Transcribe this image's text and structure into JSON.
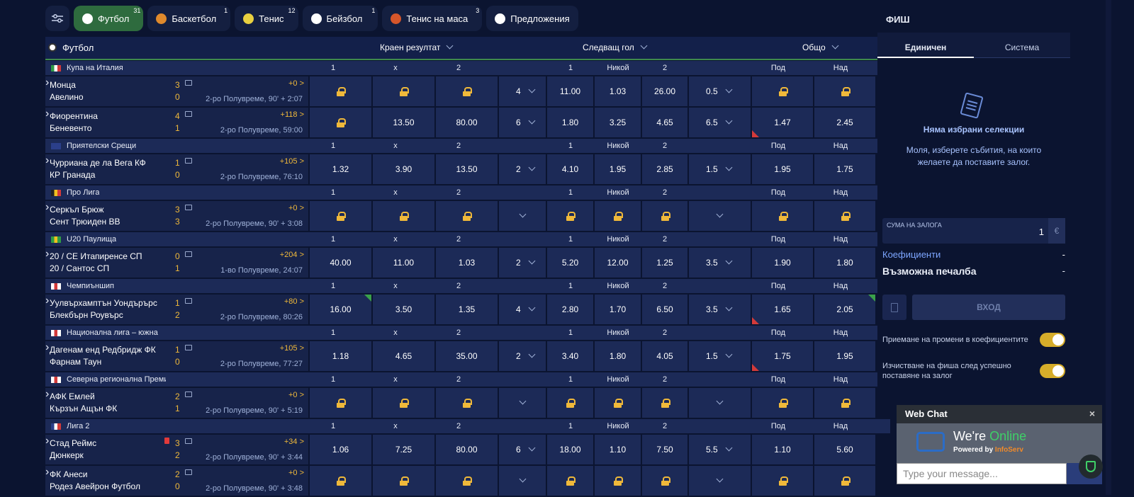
{
  "topbar": {
    "tabs": [
      {
        "label": "Футбол",
        "count": "31",
        "active": true,
        "color": "#ffffff"
      },
      {
        "label": "Баскетбол",
        "count": "1",
        "active": false,
        "color": "#e08a2c"
      },
      {
        "label": "Тенис",
        "count": "12",
        "active": false,
        "color": "#e9d040"
      },
      {
        "label": "Бейзбол",
        "count": "1",
        "active": false,
        "color": "#ffffff"
      },
      {
        "label": "Тенис на маса",
        "count": "3",
        "active": false,
        "color": "#d6562a"
      },
      {
        "label": "Предложения",
        "count": "",
        "active": false,
        "color": "#ffffff"
      }
    ]
  },
  "sport_header": {
    "label": "Футбол",
    "markets": [
      "Краен резултат",
      "Следващ гол",
      "Общо"
    ]
  },
  "headers": {
    "h1": [
      "1",
      "x",
      "2"
    ],
    "h2": [
      "1",
      "Никой",
      "2"
    ],
    "h3": [
      "Под",
      "Над"
    ]
  },
  "leagues": [
    {
      "name": "Купа на Италия",
      "flag": [
        "#2e9b45",
        "#ffffff",
        "#d33a3a"
      ],
      "matches": [
        {
          "home": "Монца",
          "away": "Авелино",
          "sh": "3",
          "sa": "0",
          "more": "+0",
          "status": "2-ро Полувреме, 90' + 2:07",
          "o1": [
            "L",
            "L",
            "L"
          ],
          "sel1": "4",
          "o2": [
            "11.00",
            "1.03",
            "26.00"
          ],
          "sel2": "0.5",
          "o3": [
            "L",
            "L"
          ],
          "mk": {},
          "red": false
        },
        {
          "home": "Фиорентина",
          "away": "Беневенто",
          "sh": "4",
          "sa": "1",
          "more": "+118",
          "status": "2-ро Полувреме, 59:00",
          "o1": [
            "L",
            "13.50",
            "80.00"
          ],
          "sel1": "6",
          "o2": [
            "1.80",
            "3.25",
            "4.65"
          ],
          "sel2": "6.5",
          "o3": [
            "1.47",
            "2.45"
          ],
          "mk": {
            "r": [
              8
            ]
          },
          "red": false
        }
      ]
    },
    {
      "name": "Приятелски Срещи",
      "flag": [
        "#2b3f8a",
        "#2b3f8a",
        "#2b3f8a"
      ],
      "matches": [
        {
          "home": "Чурриана де ла Вега КФ",
          "away": "КР Гранада",
          "sh": "1",
          "sa": "0",
          "more": "+105",
          "status": "2-ро Полувреме, 76:10",
          "o1": [
            "1.32",
            "3.90",
            "13.50"
          ],
          "sel1": "2",
          "o2": [
            "4.10",
            "1.95",
            "2.85"
          ],
          "sel2": "1.5",
          "o3": [
            "1.95",
            "1.75"
          ],
          "mk": {},
          "red": false
        }
      ]
    },
    {
      "name": "Про Лига",
      "flag": [
        "#222222",
        "#f0c020",
        "#d33a3a"
      ],
      "matches": [
        {
          "home": "Серкъл Брюж",
          "away": "Сент Трюиден ВВ",
          "sh": "3",
          "sa": "3",
          "more": "+0",
          "status": "2-ро Полувреме, 90' + 3:08",
          "o1": [
            "L",
            "L",
            "L"
          ],
          "sel1": "",
          "o2": [
            "L",
            "L",
            "L"
          ],
          "sel2": "",
          "o3": [
            "L",
            "L"
          ],
          "mk": {},
          "red": false
        }
      ]
    },
    {
      "name": "U20 Паулища",
      "flag": [
        "#2e9b45",
        "#f0c020",
        "#2e9b45"
      ],
      "matches": [
        {
          "home": "20 / СЕ Итапиренсе СП",
          "away": "20 / Сантос СП",
          "sh": "0",
          "sa": "1",
          "more": "+204",
          "status": "1-во Полувреме, 24:07",
          "o1": [
            "40.00",
            "11.00",
            "1.03"
          ],
          "sel1": "2",
          "o2": [
            "5.20",
            "12.00",
            "1.25"
          ],
          "sel2": "3.5",
          "o3": [
            "1.90",
            "1.80"
          ],
          "mk": {},
          "red": false
        }
      ]
    },
    {
      "name": "Чемпиъншип",
      "flag": [
        "#ffffff",
        "#d33a3a",
        "#ffffff"
      ],
      "matches": [
        {
          "home": "Уулвърхамптън Уондърърс",
          "away": "Блекбърн Роувърс",
          "sh": "1",
          "sa": "2",
          "more": "+80",
          "status": "2-ро Полувреме, 80:26",
          "o1": [
            "16.00",
            "3.50",
            "1.35"
          ],
          "sel1": "4",
          "o2": [
            "2.80",
            "1.70",
            "6.50"
          ],
          "sel2": "3.5",
          "o3": [
            "1.65",
            "2.05"
          ],
          "mk": {
            "g": [
              0,
              9
            ],
            "r": [
              8
            ]
          },
          "red": false
        }
      ]
    },
    {
      "name": "Национална лига – южна",
      "flag": [
        "#ffffff",
        "#d33a3a",
        "#ffffff"
      ],
      "matches": [
        {
          "home": "Дагенам енд Редбридж ФК",
          "away": "Фарнам Таун",
          "sh": "1",
          "sa": "0",
          "more": "+105",
          "status": "2-ро Полувреме, 77:27",
          "o1": [
            "1.18",
            "4.65",
            "35.00"
          ],
          "sel1": "2",
          "o2": [
            "3.40",
            "1.80",
            "4.05"
          ],
          "sel2": "1.5",
          "o3": [
            "1.75",
            "1.95"
          ],
          "mk": {
            "r": [
              8
            ]
          },
          "red": false
        }
      ]
    },
    {
      "name": "Северна регионална Премиер",
      "flag": [
        "#ffffff",
        "#d33a3a",
        "#ffffff"
      ],
      "matches": [
        {
          "home": "АФК Емлей",
          "away": "Кързън Ащън ФК",
          "sh": "2",
          "sa": "1",
          "more": "+0",
          "status": "2-ро Полувреме, 90' + 5:19",
          "o1": [
            "L",
            "L",
            "L"
          ],
          "sel1": "",
          "o2": [
            "L",
            "L",
            "L"
          ],
          "sel2": "",
          "o3": [
            "L",
            "L"
          ],
          "mk": {},
          "red": false
        }
      ]
    },
    {
      "name": "Лига 2",
      "flag": [
        "#2b3f8a",
        "#ffffff",
        "#d33a3a"
      ],
      "matches": [
        {
          "home": "Стад Реймс",
          "away": "Дюнкерк",
          "sh": "3",
          "sa": "2",
          "more": "+34",
          "status": "2-ро Полувреме, 90' + 3:44",
          "o1": [
            "1.06",
            "7.25",
            "80.00"
          ],
          "sel1": "6",
          "o2": [
            "18.00",
            "1.10",
            "7.50"
          ],
          "sel2": "5.5",
          "o3": [
            "1.10",
            "5.60"
          ],
          "mk": {},
          "red": true
        },
        {
          "home": "ФК Анеси",
          "away": "Родез Авейрон Футбол",
          "sh": "2",
          "sa": "0",
          "more": "+0",
          "status": "2-ро Полувреме, 90' + 3:48",
          "o1": [
            "L",
            "L",
            "L"
          ],
          "sel1": "",
          "o2": [
            "L",
            "L",
            "L"
          ],
          "sel2": "",
          "o3": [
            "L",
            "L"
          ],
          "mk": {},
          "red": false
        }
      ]
    }
  ],
  "slip": {
    "title": "ФИШ",
    "tab_single": "Единичен",
    "tab_system": "Система",
    "empty_title": "Няма избрани селекции",
    "empty_desc": "Моля, изберете събития, на които желаете да поставите залог.",
    "stake_label": "СУМА НА ЗАЛОГА",
    "stake_value": "1",
    "currency": "€",
    "odds_label": "Коефициенти",
    "odds_value": "-",
    "win_label": "Възможна печалба",
    "win_value": "-",
    "enter": "ВХОД",
    "toggle1": "Приемане на промени в коефициентите",
    "toggle2": "Изчистване на фиша след успешно поставяне на залог"
  },
  "chat": {
    "title": "Web Chat",
    "close": "×",
    "online_a": "We're",
    "online_b": "Online",
    "powered_a": "Powered by",
    "powered_b": "InfoServ",
    "placeholder": "Type your message..."
  }
}
